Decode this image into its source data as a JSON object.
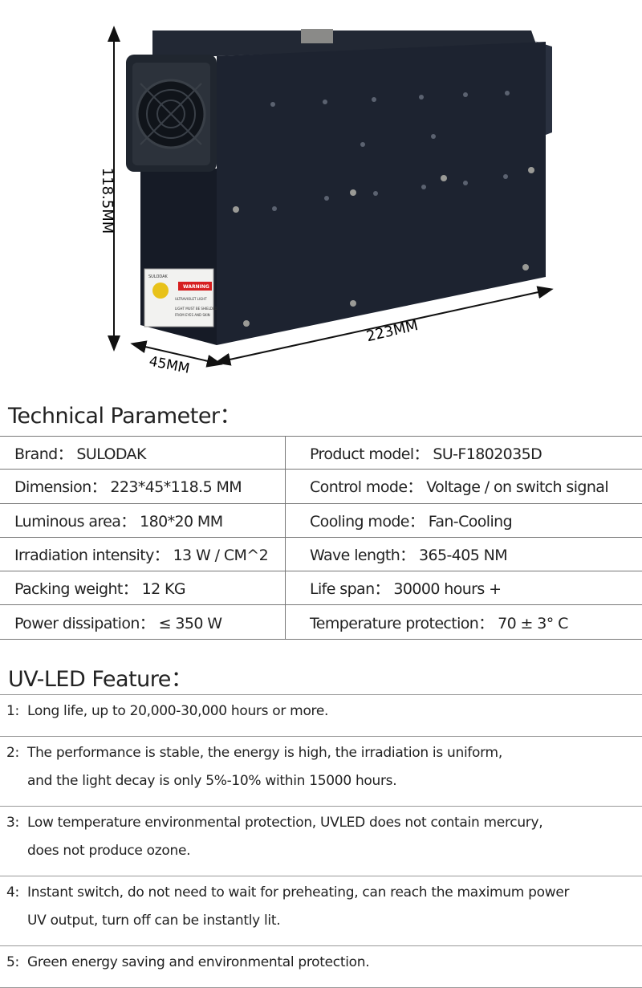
{
  "product_image": {
    "height_label": "118.5MM",
    "length_label": "223MM",
    "width_label": "45MM",
    "warning_label": {
      "brand": "SULODAK",
      "title": "WARNING",
      "lines": [
        "ULTRAVIOLET LIGHT",
        "LIGHT MUST BE SHIELDED",
        "FROM EYES AND SKIN"
      ]
    }
  },
  "technical": {
    "title": "Technical Parameter：",
    "rows": [
      [
        "Brand：  SULODAK",
        "Product model：  SU-F1802035D"
      ],
      [
        "Dimension：  223*45*118.5 MM",
        "Control mode：  Voltage / on switch signal"
      ],
      [
        "Luminous area：  180*20 MM",
        "Cooling mode：  Fan-Cooling"
      ],
      [
        "Irradiation intensity：  13 W / CM^2",
        "Wave length：  365-405 NM"
      ],
      [
        "Packing weight：  12 KG",
        "Life span：  30000 hours +"
      ],
      [
        "Power dissipation：  ≤ 350 W",
        "Temperature protection：  70 ± 3° C"
      ]
    ]
  },
  "features": {
    "title": "UV-LED Feature：",
    "items": [
      {
        "number": "1:",
        "lines": [
          "Long life, up to 20,000-30,000 hours or more."
        ]
      },
      {
        "number": "2:",
        "lines": [
          "The performance  is stable, the energy is high, the irradiation is uniform,",
          "and the light decay is only 5%-10% within 15000 hours."
        ]
      },
      {
        "number": "3:",
        "lines": [
          "Low temperature environmental protection, UVLED does not contain mercury,",
          "does not produce ozone."
        ]
      },
      {
        "number": "4:",
        "lines": [
          "Instant switch, do not need to wait for preheating, can reach the maximum power",
          "UV output, turn off can be instantly lit."
        ]
      },
      {
        "number": "5:",
        "lines": [
          "Green energy saving and environmental protection."
        ]
      }
    ]
  }
}
